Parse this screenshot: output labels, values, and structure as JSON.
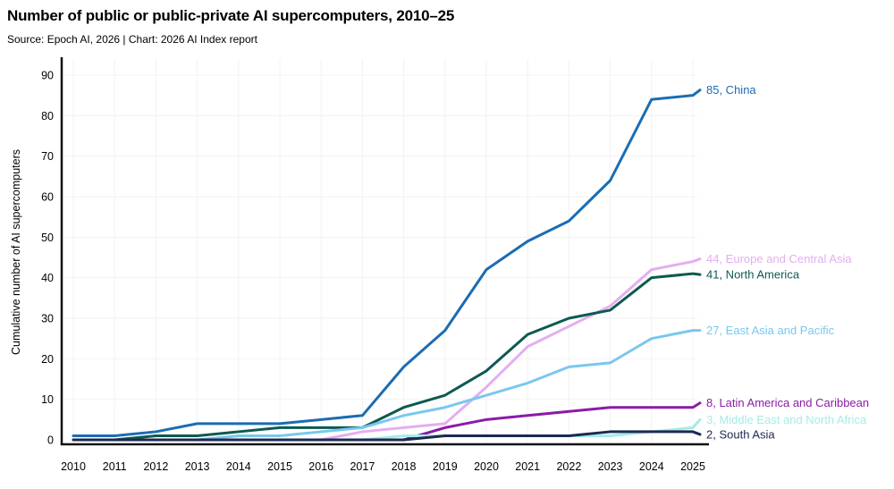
{
  "chart_data": {
    "type": "line",
    "title": "Number of public or public-private AI supercomputers, 2010–25",
    "subtitle": "Source: Epoch AI, 2026 | Chart: 2026 AI Index report",
    "xlabel": "",
    "ylabel": "Cumulative number of AI supercomputers",
    "x": [
      2010,
      2011,
      2012,
      2013,
      2014,
      2015,
      2016,
      2017,
      2018,
      2019,
      2020,
      2021,
      2022,
      2023,
      2024,
      2025
    ],
    "y_ticks": [
      0,
      10,
      20,
      30,
      40,
      50,
      60,
      70,
      80,
      90
    ],
    "ylim": [
      0,
      90
    ],
    "grid": true,
    "legend_position": "right-end-labels",
    "axis_color": "#111111",
    "gridline_color": "#f3f1f6",
    "series": [
      {
        "name": "China",
        "color": "#1b6cb3",
        "end_label": "85, China",
        "values": [
          1,
          1,
          2,
          4,
          4,
          4,
          5,
          6,
          18,
          27,
          42,
          49,
          54,
          64,
          84,
          85
        ]
      },
      {
        "name": "Europe and Central Asia",
        "color": "#e4aef0",
        "end_label": "44, Europe and Central Asia",
        "values": [
          0,
          0,
          0,
          0,
          0,
          0,
          0,
          2,
          3,
          4,
          13,
          23,
          28,
          33,
          42,
          44
        ]
      },
      {
        "name": "North America",
        "color": "#0d5a50",
        "end_label": "41, North America",
        "values": [
          0,
          0,
          1,
          1,
          2,
          3,
          3,
          3,
          8,
          11,
          17,
          26,
          30,
          32,
          40,
          41
        ]
      },
      {
        "name": "East Asia and Pacific",
        "color": "#79c8ee",
        "end_label": "27, East Asia and Pacific",
        "values": [
          0,
          0,
          0,
          0,
          1,
          1,
          2,
          3,
          6,
          8,
          11,
          14,
          18,
          19,
          25,
          27
        ]
      },
      {
        "name": "Latin America and Caribbean",
        "color": "#8c1ba6",
        "end_label": "8, Latin America and Caribbean",
        "values": [
          0,
          0,
          0,
          0,
          0,
          0,
          0,
          0,
          0,
          3,
          5,
          6,
          7,
          8,
          8,
          8
        ]
      },
      {
        "name": "Middle East and North Africa",
        "color": "#a5ece6",
        "end_label": "3, Middle East and North Africa",
        "values": [
          0,
          0,
          0,
          0,
          0,
          0,
          0,
          0,
          1,
          1,
          1,
          1,
          1,
          1,
          2,
          3
        ]
      },
      {
        "name": "South Asia",
        "color": "#1c2951",
        "end_label": "2, South Asia",
        "values": [
          0,
          0,
          0,
          0,
          0,
          0,
          0,
          0,
          0,
          1,
          1,
          1,
          1,
          2,
          2,
          2
        ]
      }
    ]
  }
}
